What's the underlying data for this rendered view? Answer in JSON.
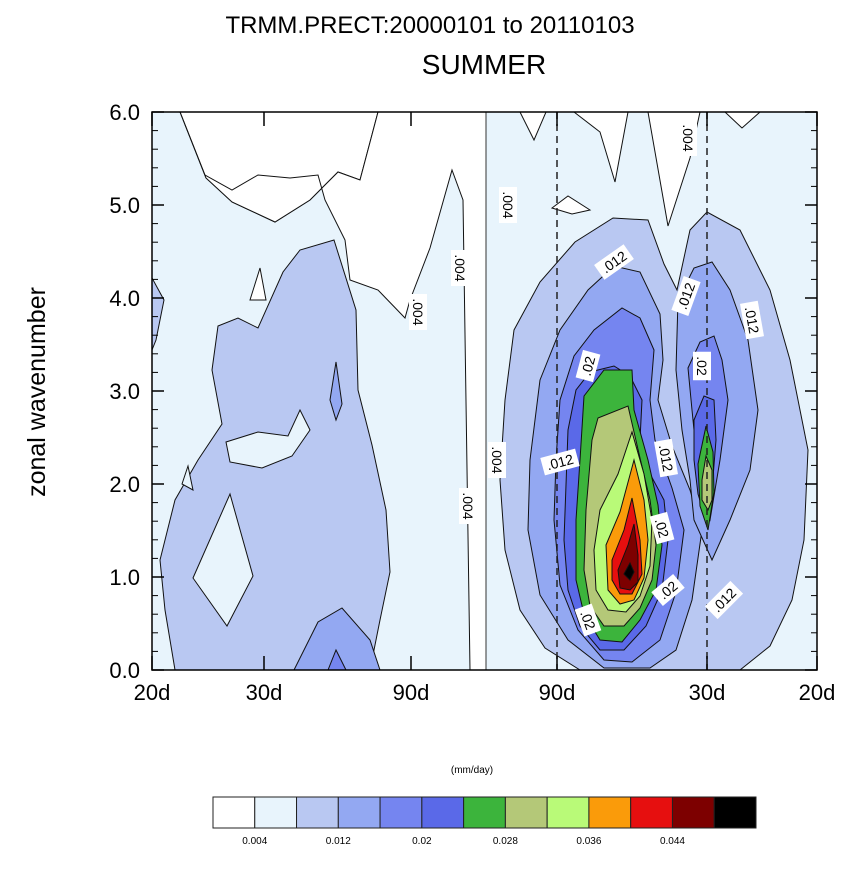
{
  "chart_data": {
    "type": "heatmap",
    "title": "TRMM.PRECT:20000101 to 20110103",
    "subtitle": "SUMMER",
    "ylabel": "zonal wavenumber",
    "ylim": [
      0,
      6
    ],
    "y_ticks": [
      "0.0",
      "1.0",
      "2.0",
      "3.0",
      "4.0",
      "5.0",
      "6.0"
    ],
    "x_ticks": [
      "20d",
      "30d",
      "90d",
      "90d",
      "30d",
      "20d"
    ],
    "colorbar": {
      "unit_label": "(mm/day)",
      "levels": [
        0.004,
        0.008,
        0.012,
        0.016,
        0.02,
        0.024,
        0.028,
        0.032,
        0.036,
        0.04,
        0.044,
        0.048
      ],
      "tick_labels": [
        "0.004",
        "0.012",
        "0.02",
        "0.028",
        "0.036",
        "0.044"
      ],
      "colors": [
        "#ffffff",
        "#e8f4fc",
        "#b9c8f2",
        "#93a8f2",
        "#7585f0",
        "#5a69e8",
        "#3cb43c",
        "#b4c878",
        "#b9fa78",
        "#fa9b0a",
        "#e60f0f",
        "#7d0000",
        "#000000"
      ]
    },
    "contour_labels": [
      ".004",
      ".004",
      ".004",
      ".004",
      ".004",
      ".004",
      ".012",
      ".012",
      ".012",
      ".012",
      ".012",
      ".012",
      ".02",
      ".02",
      ".02",
      ".02",
      ".02"
    ]
  }
}
